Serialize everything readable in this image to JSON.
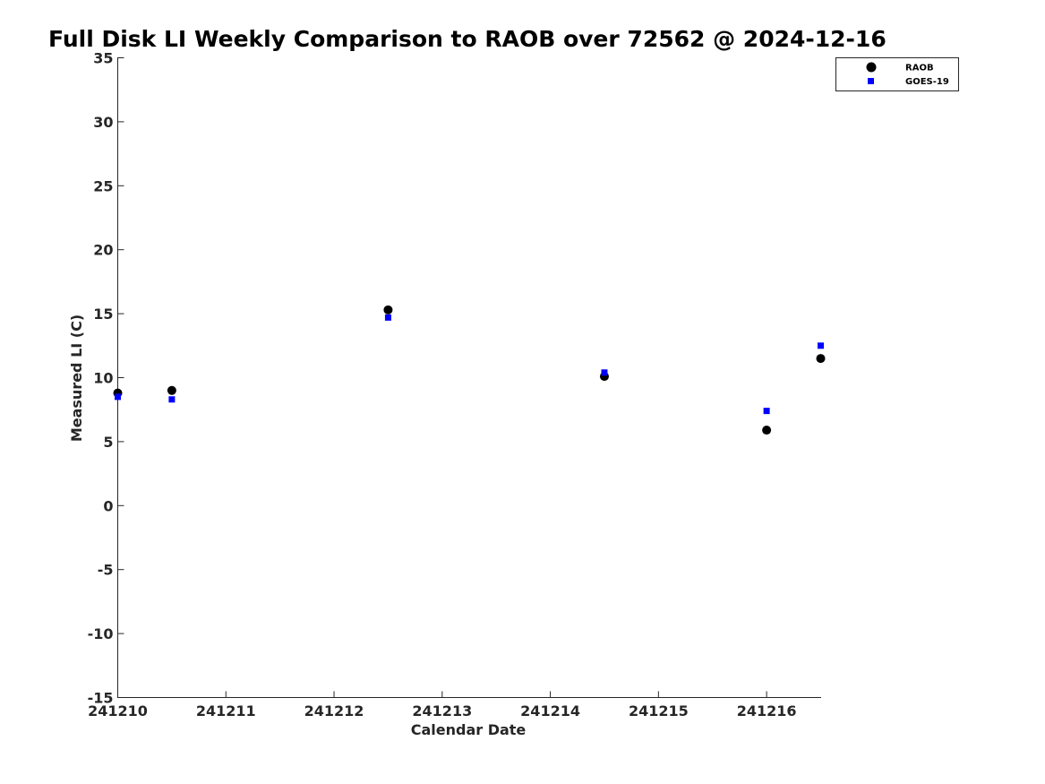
{
  "chart_data": {
    "type": "scatter",
    "title": "Full Disk LI Weekly Comparison to RAOB over 72562 @ 2024-12-16",
    "xlabel": "Calendar Date",
    "ylabel": "Measured LI (C)",
    "xlim": [
      0,
      6.5
    ],
    "ylim": [
      -15,
      35
    ],
    "x_ticks": [
      0,
      1,
      2,
      3,
      4,
      5,
      6
    ],
    "x_tick_labels": [
      "241210",
      "241211",
      "241212",
      "241213",
      "241214",
      "241215",
      "241216"
    ],
    "y_ticks": [
      35,
      30,
      25,
      20,
      15,
      10,
      5,
      0,
      -5,
      -10,
      -15
    ],
    "y_tick_labels": [
      "35",
      "30",
      "25",
      "20",
      "15",
      "10",
      "5",
      "0",
      "-5",
      "-10",
      "-15"
    ],
    "grid": false,
    "legend_position": "top-right",
    "series": [
      {
        "name": "RAOB",
        "marker": "circle",
        "color": "#000000",
        "x": [
          0,
          0.5,
          2.5,
          4.5,
          6,
          6.5
        ],
        "y": [
          8.8,
          9.0,
          15.3,
          10.1,
          5.9,
          11.5
        ]
      },
      {
        "name": "GOES-19",
        "marker": "square",
        "color": "#0000ff",
        "x": [
          0,
          0.5,
          2.5,
          4.5,
          6,
          6.5
        ],
        "y": [
          8.5,
          8.3,
          14.7,
          10.4,
          7.4,
          12.5
        ]
      }
    ]
  }
}
